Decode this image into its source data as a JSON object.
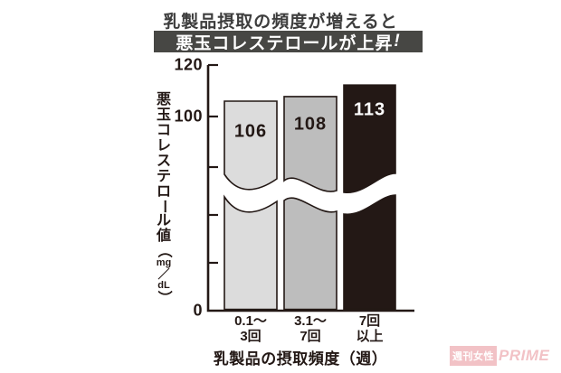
{
  "title": {
    "line1": "乳製品摂取の頻度が増えると",
    "banner_text": "悪玉コレステロールが上昇",
    "banner_exclaim": "!",
    "banner_bg": "#474744"
  },
  "chart_data": {
    "type": "bar",
    "categories": [
      "0.1～\n3回",
      "3.1～\n7回",
      "7回\n以上"
    ],
    "values": [
      106,
      108,
      113
    ],
    "title": "乳製品摂取の頻度が増えると 悪玉コレステロールが上昇!",
    "ylabel": "悪玉コレステロール値（mg／dL）",
    "xlabel": "乳製品の摂取頻度（週）",
    "yticks_labeled": [
      120,
      100,
      0
    ],
    "ylim": [
      0,
      120
    ],
    "axis_break": true,
    "grid": false,
    "bar_colors": [
      "#dcdcdc",
      "#bdbdbd",
      "#231815"
    ],
    "value_label_colors": [
      "#231815",
      "#231815",
      "#ffffff"
    ],
    "axis_color": "#231815"
  },
  "watermark": {
    "box_text": "週刊女性",
    "brand_text": "PRIME",
    "pink": "#f0b4b8"
  }
}
